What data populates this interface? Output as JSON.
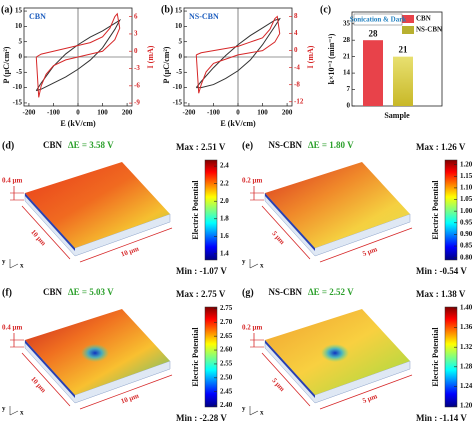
{
  "chart_data": [
    {
      "type": "line",
      "label": "(a)",
      "title": "CBN",
      "xlabel": "E (kV/cm)",
      "ylabel": "P (μC/cm²)",
      "y2label": "I (mA)",
      "xlim": [
        -220,
        220
      ],
      "xticks": [
        -200,
        -100,
        0,
        100,
        200
      ],
      "ylim": [
        -16,
        16
      ],
      "yticks": [
        15,
        10,
        5,
        0,
        -5,
        -10,
        -15
      ],
      "y2lim": [
        -9.5,
        7.5
      ],
      "y2ticks": [
        6,
        3,
        0,
        -3,
        -6,
        -9
      ],
      "series": [
        {
          "color": "#333333",
          "x": [
            -170,
            -150,
            -100,
            -50,
            0,
            50,
            100,
            150,
            170,
            150,
            100,
            50,
            0,
            -50,
            -100,
            -150,
            -170
          ],
          "values": [
            -11,
            -8.5,
            -3,
            1,
            4,
            6.5,
            8.5,
            11,
            12,
            9,
            3,
            -1,
            -4,
            -6.5,
            -8.5,
            -10.5,
            -11
          ]
        },
        {
          "color": "#d62728",
          "axis": "y2",
          "x": [
            -170,
            -150,
            -100,
            -50,
            0,
            50,
            100,
            130,
            150,
            160,
            170,
            150,
            100,
            50,
            0,
            -50,
            -100,
            -130,
            -150,
            -160,
            -170
          ],
          "values": [
            -1,
            -0.5,
            0,
            0.5,
            1,
            1.5,
            2.5,
            4,
            6,
            6.5,
            4,
            2,
            0,
            -0.5,
            -1,
            -1.5,
            -2.5,
            -4,
            -6,
            -8,
            -1
          ]
        }
      ]
    },
    {
      "type": "line",
      "label": "(b)",
      "title": "NS-CBN",
      "xlabel": "E (kV/cm)",
      "ylabel": "P (μC/cm²)",
      "y2label": "I (mA)",
      "xlim": [
        -220,
        220
      ],
      "xticks": [
        -200,
        -100,
        0,
        100,
        200
      ],
      "ylim": [
        -16,
        16
      ],
      "yticks": [
        15,
        10,
        5,
        0,
        -5,
        -10,
        -15
      ],
      "y2lim": [
        -13,
        10
      ],
      "y2ticks": [
        8,
        4,
        0,
        -4,
        -8,
        -12
      ],
      "series": [
        {
          "color": "#333333",
          "x": [
            -170,
            -150,
            -100,
            -50,
            0,
            50,
            100,
            150,
            170,
            150,
            100,
            50,
            0,
            -50,
            -100,
            -150,
            -170
          ],
          "values": [
            -10,
            -8,
            -3.5,
            0.5,
            4,
            7,
            9.5,
            12,
            12.5,
            10,
            4,
            -1,
            -4.5,
            -7,
            -9,
            -10,
            -10
          ]
        },
        {
          "color": "#d62728",
          "axis": "y2",
          "x": [
            -170,
            -150,
            -100,
            -50,
            0,
            50,
            100,
            130,
            150,
            160,
            170,
            150,
            100,
            50,
            0,
            -50,
            -100,
            -130,
            -150,
            -160,
            -170
          ],
          "values": [
            -1,
            -0.5,
            0,
            0.5,
            1,
            2,
            3,
            5,
            7.5,
            8,
            4,
            2,
            0,
            -0.5,
            -1,
            -2,
            -3,
            -5,
            -8,
            -10,
            -1
          ]
        }
      ]
    },
    {
      "type": "bar",
      "label": "(c)",
      "title": "Sonication & Dark",
      "xlabel": "Sample",
      "ylabel": "k×10⁻³ (min⁻¹)",
      "ylim": [
        0,
        40
      ],
      "yticks": [
        0,
        7,
        14,
        21,
        28,
        35
      ],
      "series": [
        {
          "name": "CBN",
          "color": "#e8424a",
          "values": [
            28
          ]
        },
        {
          "name": "NS-CBN",
          "color": "#b8b030",
          "values": [
            21
          ]
        }
      ]
    }
  ],
  "maps": [
    {
      "label": "(d)",
      "sample": "CBN",
      "delta": "ΔE = 3.58 V",
      "max": "Max : 2.51 V",
      "min": "Min : -1.07 V",
      "thickness": "0.4 μm",
      "scale_x": "10 μm",
      "scale_y": "10 μm",
      "axis_y": "y",
      "axis_x": "x",
      "colorbar_label": "Electric Potential",
      "clim": [
        1.33,
        2.47
      ],
      "cticks": [
        {
          "value": 2.4,
          "label": "2.4"
        },
        {
          "value": 2.2,
          "label": "2.2"
        },
        {
          "value": 2,
          "label": "2.0"
        },
        {
          "value": 1.8,
          "label": "1.8"
        },
        {
          "value": 1.6,
          "label": "1.6"
        },
        {
          "value": 1.4,
          "label": "1.4"
        }
      ]
    },
    {
      "label": "(e)",
      "sample": "NS-CBN",
      "delta": "ΔE = 1.80 V",
      "max": "Max : 1.26 V",
      "min": "Min : -0.54 V",
      "thickness": "0.2 μm",
      "scale_x": "5 μm",
      "scale_y": "5 μm",
      "axis_y": "y",
      "axis_x": "x",
      "colorbar_label": "Electric Potential",
      "clim": [
        0.79,
        1.22
      ],
      "cticks": [
        {
          "value": 1.2,
          "label": "1.20"
        },
        {
          "value": 1.15,
          "label": "1.15"
        },
        {
          "value": 1.1,
          "label": "1.10"
        },
        {
          "value": 1.05,
          "label": "1.05"
        },
        {
          "value": 1,
          "label": "1.00"
        },
        {
          "value": 0.95,
          "label": "0.95"
        },
        {
          "value": 0.9,
          "label": "0.90"
        },
        {
          "value": 0.85,
          "label": "0.85"
        },
        {
          "value": 0.8,
          "label": "0.80"
        }
      ]
    },
    {
      "label": "(f)",
      "sample": "CBN",
      "delta": "ΔE = 5.03 V",
      "max": "Max : 2.75 V",
      "min": "Min : -2.28 V",
      "thickness": "0.4 μm",
      "scale_x": "10 μm",
      "scale_y": "10 μm",
      "axis_y": "y",
      "axis_x": "x",
      "colorbar_label": "Electric Potential",
      "clim": [
        2.395,
        2.755
      ],
      "cticks": [
        {
          "value": 2.75,
          "label": "2.75"
        },
        {
          "value": 2.7,
          "label": "2.70"
        },
        {
          "value": 2.65,
          "label": "2.65"
        },
        {
          "value": 2.6,
          "label": "2.60"
        },
        {
          "value": 2.55,
          "label": "2.55"
        },
        {
          "value": 2.5,
          "label": "2.50"
        },
        {
          "value": 2.45,
          "label": "2.45"
        },
        {
          "value": 2.4,
          "label": "2.40"
        }
      ]
    },
    {
      "label": "(g)",
      "sample": "NS-CBN",
      "delta": "ΔE = 2.52 V",
      "max": "Max : 1.38 V",
      "min": "Min : -1.14 V",
      "thickness": "0.2 μm",
      "scale_x": "5 μm",
      "scale_y": "5 μm",
      "axis_y": "y",
      "axis_x": "x",
      "colorbar_label": "Electric Potential",
      "clim": [
        1.198,
        1.402
      ],
      "cticks": [
        {
          "value": 1.4,
          "label": "1.40"
        },
        {
          "value": 1.36,
          "label": "1.36"
        },
        {
          "value": 1.32,
          "label": "1.32"
        },
        {
          "value": 1.28,
          "label": "1.28"
        },
        {
          "value": 1.24,
          "label": "1.24"
        },
        {
          "value": 1.2,
          "label": "1.20"
        }
      ]
    }
  ]
}
